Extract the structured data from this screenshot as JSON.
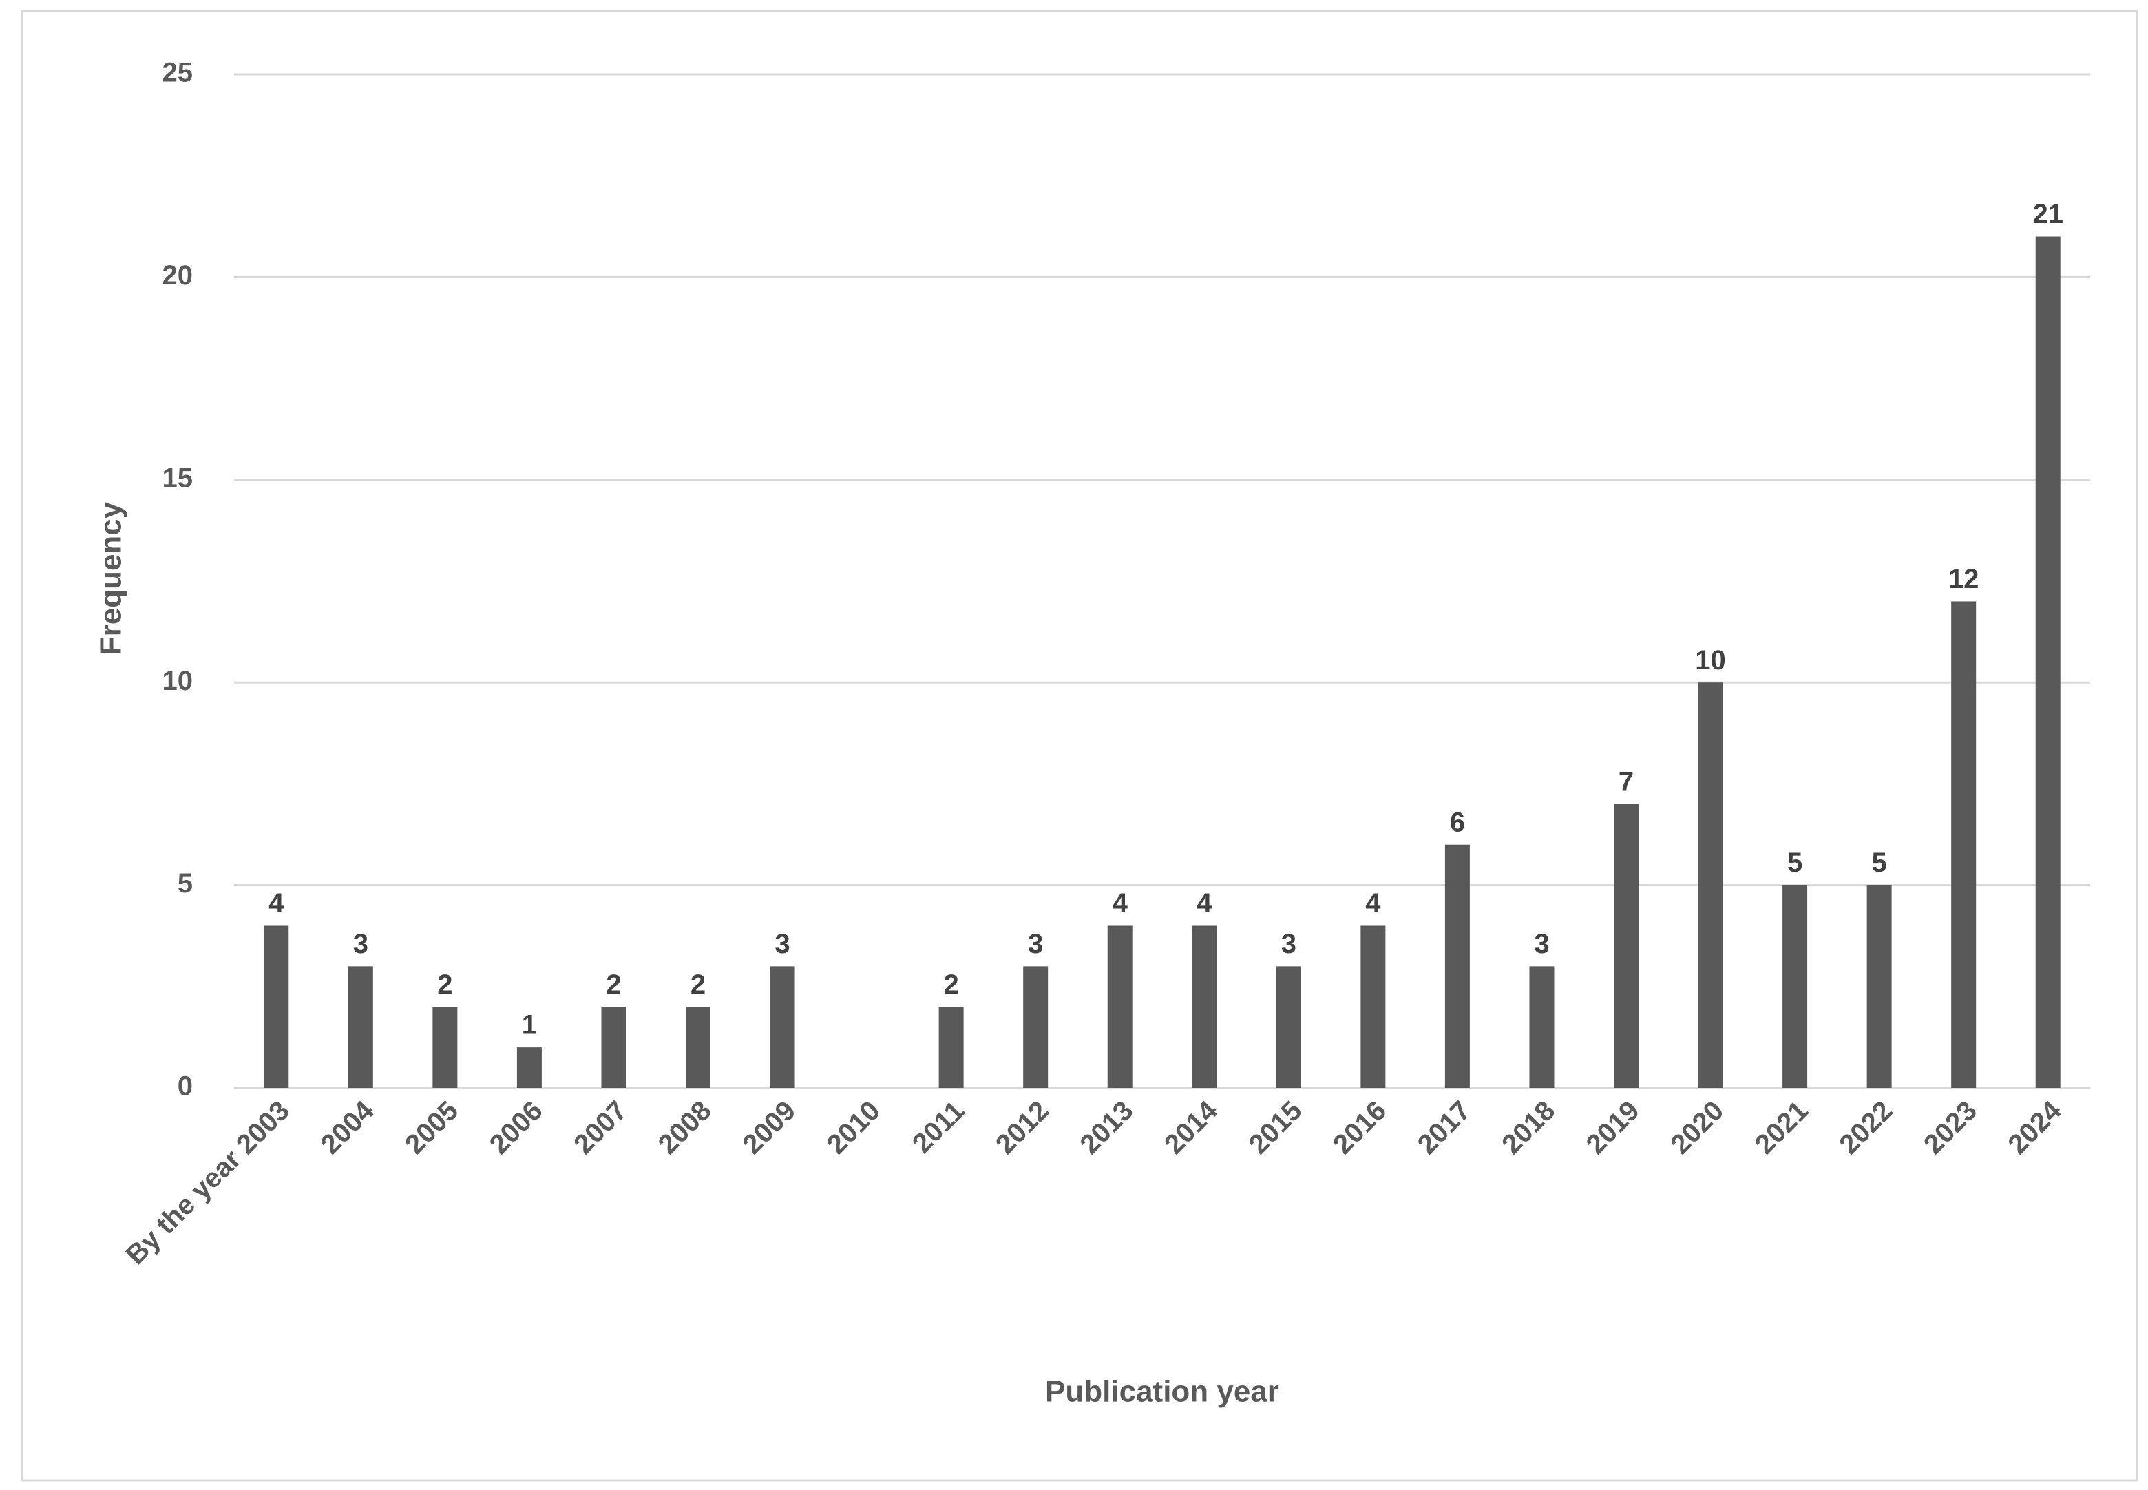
{
  "chart_data": {
    "type": "bar",
    "x_label": "Publication year",
    "y_label": "Frequency",
    "categories": [
      "By the year 2003",
      "2004",
      "2005",
      "2006",
      "2007",
      "2008",
      "2009",
      "2010",
      "2011",
      "2012",
      "2013",
      "2014",
      "2015",
      "2016",
      "2017",
      "2018",
      "2019",
      "2020",
      "2021",
      "2022",
      "2023",
      "2024"
    ],
    "values": [
      4,
      3,
      2,
      1,
      2,
      2,
      3,
      null,
      2,
      3,
      4,
      4,
      3,
      4,
      6,
      3,
      7,
      10,
      5,
      5,
      12,
      21
    ],
    "color": "#595959",
    "ylim": [
      0,
      25
    ],
    "yticks": [
      0,
      5,
      10,
      15,
      20,
      25
    ],
    "grid": true
  }
}
